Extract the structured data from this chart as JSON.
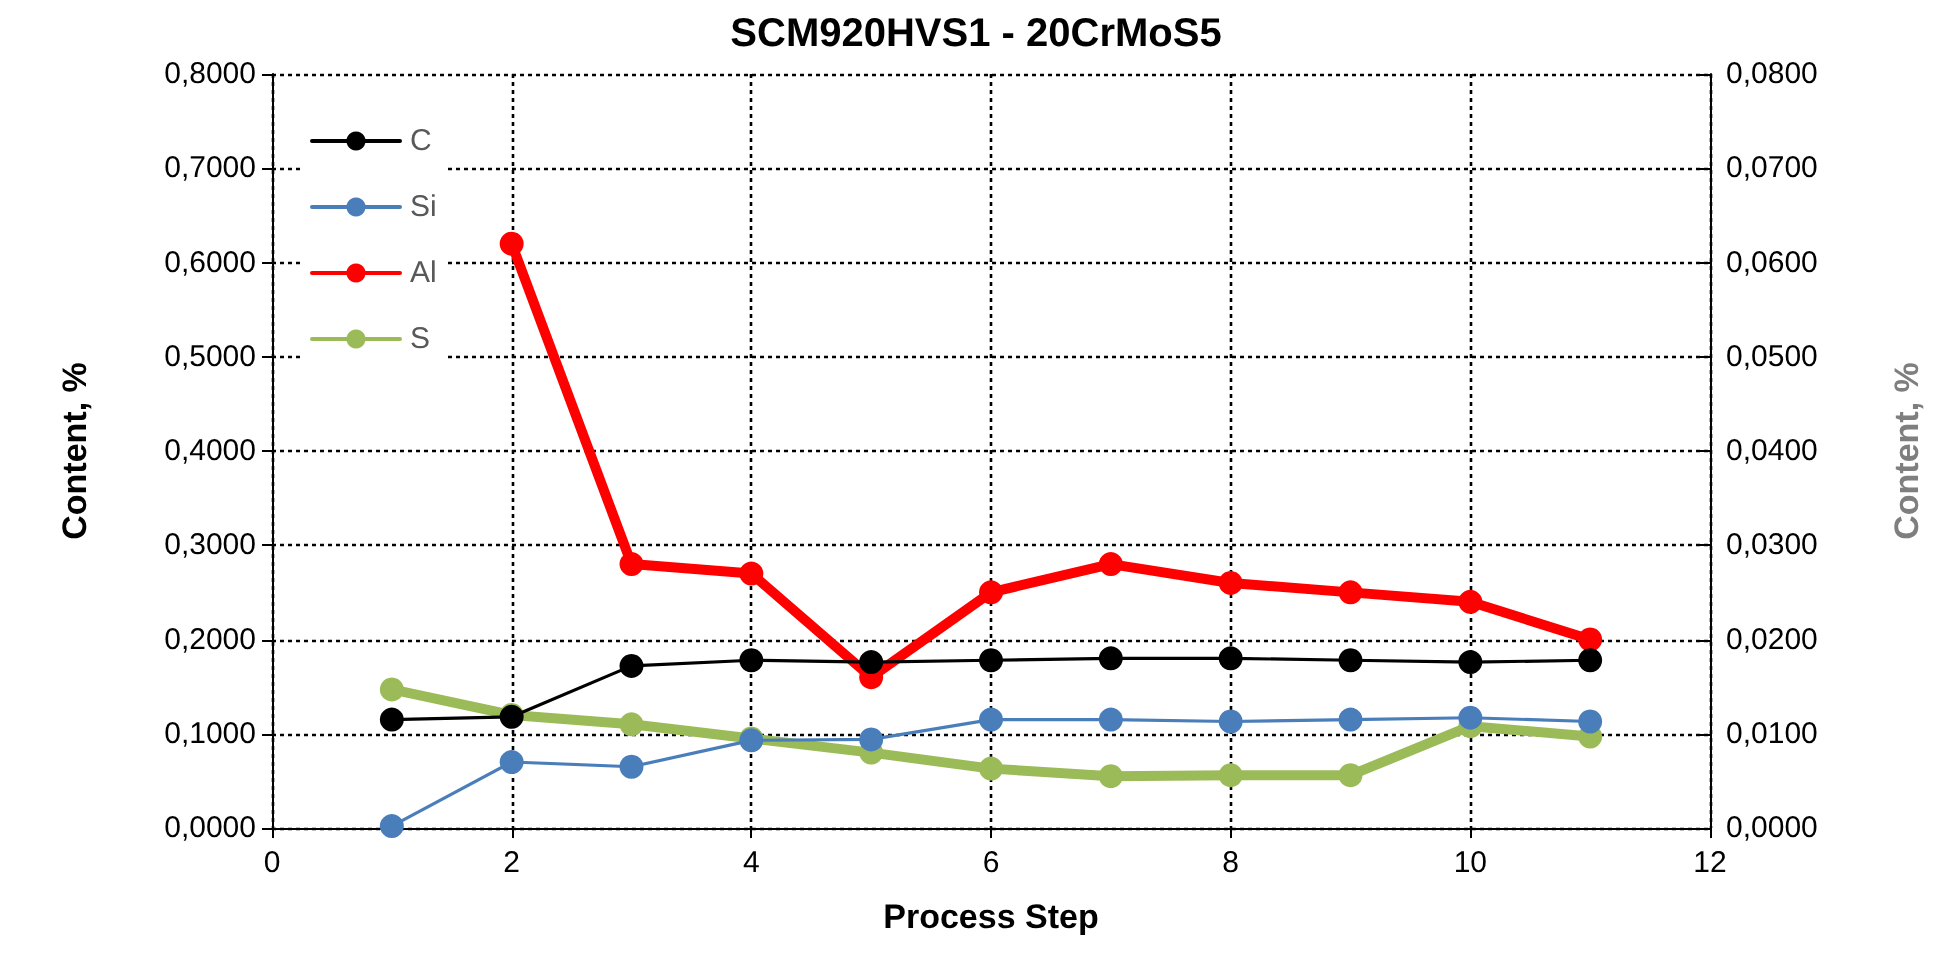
{
  "chart_data": {
    "type": "line",
    "title": "SCM920HVS1 - 20CrMoS5",
    "xlabel": "Process Step",
    "ylabel": "Content, %",
    "y2label": "Content, %",
    "x": [
      1,
      2,
      3,
      4,
      5,
      6,
      7,
      8,
      9,
      10,
      11
    ],
    "series": [
      {
        "name": "C",
        "color": "#000000",
        "values": [
          0.115,
          0.118,
          0.172,
          0.178,
          0.176,
          0.178,
          0.18,
          0.18,
          0.178,
          0.176,
          0.178
        ]
      },
      {
        "name": "Si",
        "color": "#4a7ebb",
        "values": [
          0.002,
          0.07,
          0.065,
          0.093,
          0.094,
          0.115,
          0.115,
          0.113,
          0.115,
          0.117,
          0.113
        ]
      },
      {
        "name": "Al",
        "color": "#ff0000",
        "axis": "y2",
        "values": [
          null,
          0.062,
          0.028,
          0.027,
          0.016,
          0.025,
          0.028,
          0.026,
          0.025,
          0.024,
          0.02
        ]
      },
      {
        "name": "S",
        "color": "#9bbb59",
        "axis": "y2",
        "values": [
          0.0147,
          0.012,
          0.011,
          0.0095,
          0.008,
          0.0063,
          0.0055,
          0.0056,
          0.0056,
          0.0108,
          0.0097
        ]
      }
    ],
    "xlim": [
      0,
      12
    ],
    "xticks": [
      0,
      2,
      4,
      6,
      8,
      10,
      12
    ],
    "ylim": [
      0,
      0.8
    ],
    "yticks": [
      {
        "value": 0,
        "label": "0,0000"
      },
      {
        "value": 0.1,
        "label": "0,1000"
      },
      {
        "value": 0.2,
        "label": "0,2000"
      },
      {
        "value": 0.3,
        "label": "0,3000"
      },
      {
        "value": 0.4,
        "label": "0,4000"
      },
      {
        "value": 0.5,
        "label": "0,5000"
      },
      {
        "value": 0.6,
        "label": "0,6000"
      },
      {
        "value": 0.7,
        "label": "0,7000"
      },
      {
        "value": 0.8,
        "label": "0,8000"
      }
    ],
    "y2lim": [
      0,
      0.08
    ],
    "y2ticks": [
      {
        "value": 0,
        "label": "0,0000"
      },
      {
        "value": 0.01,
        "label": "0,0100"
      },
      {
        "value": 0.02,
        "label": "0,0200"
      },
      {
        "value": 0.03,
        "label": "0,0300"
      },
      {
        "value": 0.04,
        "label": "0,0400"
      },
      {
        "value": 0.05,
        "label": "0,0500"
      },
      {
        "value": 0.06,
        "label": "0,0600"
      },
      {
        "value": 0.07,
        "label": "0,0700"
      },
      {
        "value": 0.08,
        "label": "0,0800"
      }
    ],
    "grid": true,
    "legend": "top left",
    "marker": "circle",
    "line_style": "solid"
  }
}
